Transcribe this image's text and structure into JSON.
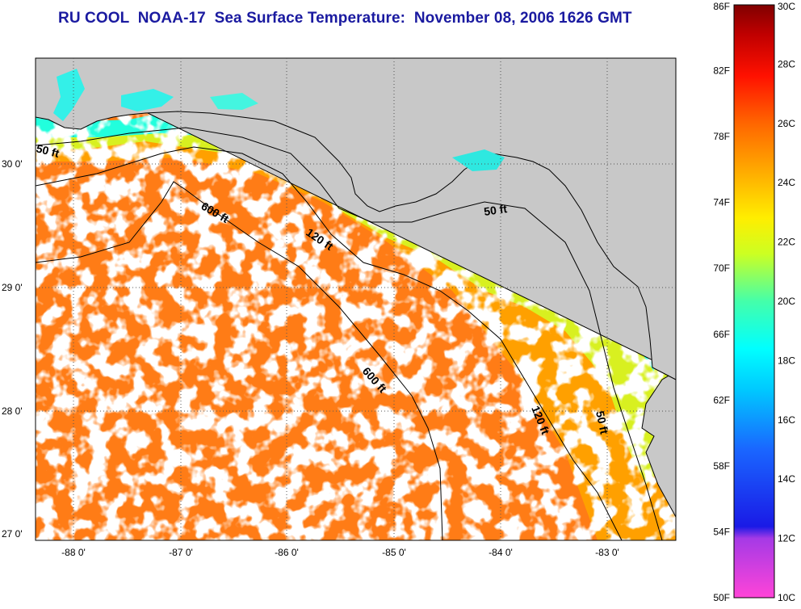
{
  "title": "RU COOL  NOAA-17  Sea Surface Temperature:  November 08, 2006 1626 GMT",
  "map": {
    "latitude_labels": [
      "30 0'",
      "29 0'",
      "28 0'",
      "27 0'"
    ],
    "longitude_labels": [
      "-88 0'",
      "-87 0'",
      "-86 0'",
      "-85 0'",
      "-84 0'",
      "-83 0'"
    ],
    "contour_labels": [
      {
        "text": "50 ft",
        "depth": "50 ft"
      },
      {
        "text": "600 ft",
        "depth": "600 ft"
      },
      {
        "text": "120 ft",
        "depth": "120 ft"
      },
      {
        "text": "50 ft",
        "depth": "50 ft"
      },
      {
        "text": "600 ft",
        "depth": "600 ft"
      },
      {
        "text": "120 ft",
        "depth": "120 ft"
      },
      {
        "text": "50 ft",
        "depth": "50 ft"
      }
    ],
    "colors": {
      "land": "#c8c8c8",
      "cloud": "#ffffff",
      "coastline": "#000000",
      "grid": "#555555"
    }
  },
  "colorbar": {
    "fahrenheit_labels": [
      "86F",
      "82F",
      "78F",
      "74F",
      "70F",
      "66F",
      "62F",
      "58F",
      "54F",
      "50F"
    ],
    "celsius_labels": [
      "30C",
      "28C",
      "26C",
      "24C",
      "22C",
      "20C",
      "18C",
      "16C",
      "14C",
      "12C",
      "10C"
    ],
    "gradient_stops": [
      "#ff44d8",
      "#8a2fe0",
      "#1a1ae6",
      "#1a66ff",
      "#00c8ff",
      "#00ffff",
      "#44ffaa",
      "#ccff22",
      "#ffee00",
      "#ffaa00",
      "#ff6600",
      "#ff1100",
      "#c00000",
      "#800000"
    ]
  }
}
